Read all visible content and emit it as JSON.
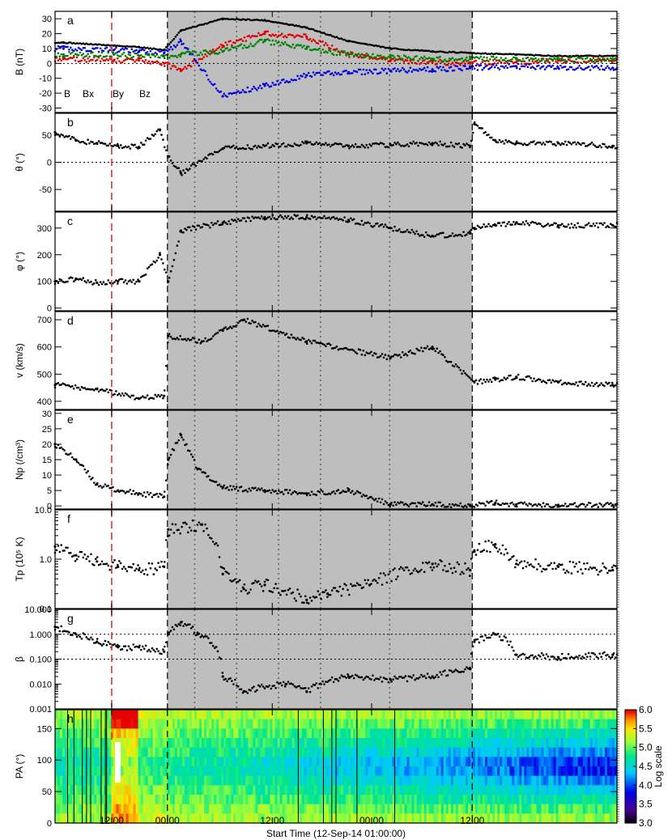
{
  "figure": {
    "xlabel": "Start Time (12-Sep-14 01:00:00)",
    "xtick_labels": [
      "12:00",
      "00:00",
      "12:00",
      "00:00",
      "12:00"
    ],
    "colorbar_label": "Log scale",
    "colorbar_ticks": [
      "3.0",
      "3.5",
      "4.0",
      "4.5",
      "5.0",
      "5.5",
      "6.0"
    ],
    "colors": {
      "shade": "#bebebe",
      "red_marker": "#e03030",
      "Bx": "#e00000",
      "By": "#0000e0",
      "Bz": "#008000",
      "B": "#000000"
    }
  },
  "chart_data": [
    {
      "type": "scatter",
      "panel_letter": "a",
      "ylabel": "B (nT)",
      "ylim": [
        -33,
        35
      ],
      "yticks": [
        30,
        20,
        10,
        0,
        -10,
        -20,
        -30
      ],
      "series": [
        {
          "name": "B",
          "color": "#000000",
          "x": [
            2,
            14,
            20,
            26,
            30,
            40,
            50,
            60,
            70,
            80,
            90,
            99,
            110,
            120,
            133
          ],
          "y": [
            14,
            12,
            11,
            9,
            22,
            30,
            29,
            24,
            15,
            10,
            8,
            7,
            6,
            5,
            5
          ]
        },
        {
          "name": "Bx",
          "color": "#e00000",
          "x": [
            2,
            14,
            20,
            26,
            30,
            40,
            50,
            60,
            70,
            80,
            90,
            99,
            110,
            120,
            133
          ],
          "y": [
            3,
            2,
            2,
            0,
            -5,
            12,
            20,
            18,
            6,
            2,
            1,
            0,
            1,
            2,
            2
          ]
        },
        {
          "name": "By",
          "color": "#0000e0",
          "x": [
            2,
            14,
            20,
            26,
            30,
            40,
            50,
            60,
            70,
            80,
            90,
            99,
            110,
            120,
            133
          ],
          "y": [
            10,
            9,
            8,
            7,
            15,
            -22,
            -15,
            -8,
            -6,
            -5,
            -4,
            -3,
            -2,
            -3,
            -3
          ]
        },
        {
          "name": "Bz",
          "color": "#008000",
          "x": [
            2,
            14,
            20,
            26,
            30,
            40,
            50,
            60,
            70,
            80,
            90,
            99,
            110,
            120,
            133
          ],
          "y": [
            6,
            6,
            5,
            5,
            6,
            8,
            15,
            10,
            6,
            4,
            3,
            3,
            3,
            3,
            2
          ]
        }
      ]
    },
    {
      "type": "scatter",
      "panel_letter": "b",
      "ylabel": "θ (°)",
      "ylim": [
        -90,
        90
      ],
      "yticks": [
        50,
        0,
        -50
      ],
      "series": [
        {
          "name": "",
          "x": [
            0,
            5,
            10,
            15,
            20,
            25,
            27,
            30,
            40,
            50,
            60,
            70,
            80,
            90,
            99,
            100,
            105,
            110,
            120,
            133
          ],
          "y": [
            55,
            40,
            35,
            30,
            28,
            60,
            10,
            -20,
            25,
            30,
            35,
            30,
            32,
            35,
            30,
            70,
            40,
            35,
            35,
            30
          ]
        }
      ]
    },
    {
      "type": "scatter",
      "panel_letter": "c",
      "ylabel": "φ (°)",
      "ylim": [
        -10,
        360
      ],
      "yticks": [
        300,
        200,
        100,
        0
      ],
      "series": [
        {
          "name": "",
          "x": [
            0,
            5,
            10,
            15,
            20,
            25,
            27,
            30,
            40,
            50,
            60,
            70,
            80,
            90,
            99,
            100,
            105,
            110,
            120,
            133
          ],
          "y": [
            100,
            110,
            95,
            100,
            100,
            200,
            100,
            290,
            320,
            340,
            340,
            330,
            300,
            270,
            280,
            300,
            310,
            320,
            310,
            310
          ]
        }
      ]
    },
    {
      "type": "scatter",
      "panel_letter": "d",
      "ylabel": "v (km/s)",
      "ylim": [
        370,
        730
      ],
      "yticks": [
        700,
        600,
        500,
        400
      ],
      "series": [
        {
          "name": "",
          "x": [
            0,
            10,
            20,
            26,
            27,
            35,
            40,
            45,
            60,
            80,
            90,
            100,
            105,
            110,
            120,
            133
          ],
          "y": [
            460,
            445,
            410,
            420,
            640,
            620,
            660,
            700,
            620,
            560,
            600,
            470,
            480,
            490,
            470,
            460
          ]
        }
      ]
    },
    {
      "type": "scatter",
      "panel_letter": "e",
      "ylabel": "Np (/cm³)",
      "ylim": [
        -1,
        31
      ],
      "yticks": [
        30,
        25,
        20,
        15,
        10,
        5,
        0
      ],
      "series": [
        {
          "name": "",
          "x": [
            0,
            5,
            10,
            15,
            20,
            26,
            27,
            30,
            34,
            40,
            50,
            60,
            70,
            80,
            90,
            99,
            105,
            110,
            120,
            133
          ],
          "y": [
            20,
            15,
            7,
            5,
            4,
            3,
            15,
            23,
            12,
            6,
            5,
            4,
            5,
            0.5,
            0.5,
            0.3,
            1,
            0.5,
            0.3,
            0.3
          ]
        }
      ]
    },
    {
      "type": "scatter",
      "panel_letter": "f",
      "ylabel": "Tp (10⁵ K)",
      "yscale": "log",
      "ylim": [
        0.1,
        10
      ],
      "ytick_labels": [
        "10.0",
        "1.0",
        "0.1"
      ],
      "series": [
        {
          "name": "",
          "x": [
            0,
            5,
            10,
            15,
            20,
            26,
            27,
            35,
            40,
            45,
            50,
            60,
            65,
            75,
            90,
            99,
            100,
            105,
            110,
            120,
            133
          ],
          "y": [
            1.8,
            1.2,
            0.9,
            0.7,
            0.6,
            0.7,
            4,
            5,
            0.5,
            0.25,
            0.3,
            0.15,
            0.2,
            0.3,
            0.8,
            0.6,
            1.5,
            2,
            0.8,
            0.7,
            0.6
          ]
        }
      ]
    },
    {
      "type": "scatter",
      "panel_letter": "g",
      "ylabel": "β",
      "yscale": "log",
      "ylim": [
        0.001,
        10
      ],
      "ytick_labels": [
        "10.000",
        "1.000",
        "0.100",
        "0.010",
        "0.001"
      ],
      "reference_lines": [
        1,
        0.1
      ],
      "series": [
        {
          "name": "",
          "x": [
            0,
            5,
            10,
            15,
            20,
            26,
            27,
            30,
            34,
            40,
            45,
            55,
            60,
            70,
            80,
            90,
            99,
            100,
            105,
            110,
            120,
            133
          ],
          "y": [
            2,
            1,
            0.5,
            0.3,
            0.3,
            0.2,
            1,
            3,
            1,
            0.02,
            0.005,
            0.01,
            0.005,
            0.02,
            0.015,
            0.02,
            0.04,
            0.5,
            1,
            0.15,
            0.12,
            0.15
          ]
        }
      ]
    },
    {
      "type": "heatmap",
      "panel_letter": "h",
      "ylabel": "PA (°)",
      "ylim": [
        0,
        180
      ],
      "yticks": [
        150,
        100,
        50,
        0
      ],
      "colorbar_range": [
        3.0,
        6.0
      ]
    }
  ]
}
